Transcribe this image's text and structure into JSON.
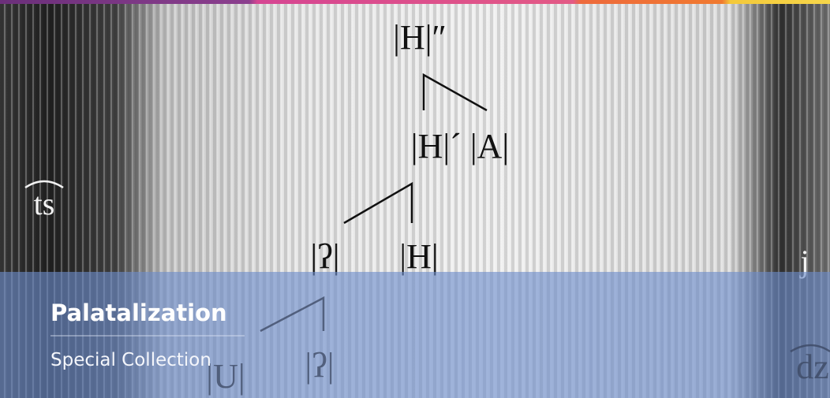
{
  "banner": {
    "notation": {
      "top": "|H|″",
      "middle": "|H|´ |A|",
      "lower_left": "|ʔ|",
      "lower_right": "|H|",
      "bottom_left": "|U|",
      "bottom_right": "|ʔ|"
    },
    "side_labels": {
      "left": "ts",
      "right_upper": "j",
      "right_lower": "dz"
    },
    "title": "Palatalization",
    "subtitle": "Special Collection"
  }
}
